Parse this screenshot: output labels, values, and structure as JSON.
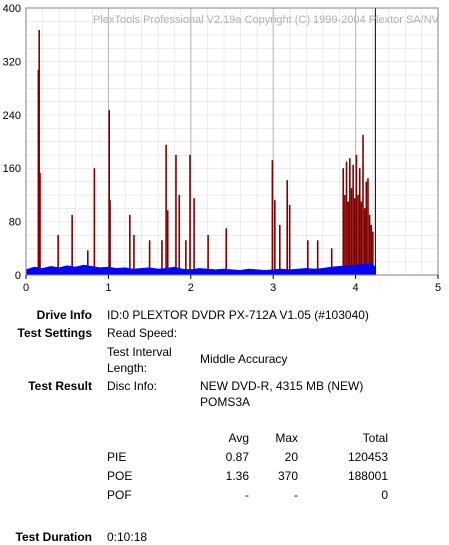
{
  "chart_data": {
    "type": "bar",
    "title": "PlexTools Professional V2.19a Copyright (C) 1999-2004 Plextor SA/NV",
    "xlim": [
      0,
      5
    ],
    "xticks": [
      0,
      1,
      2,
      3,
      4,
      5
    ],
    "ylim": [
      0,
      400
    ],
    "yticks": [
      0,
      80,
      160,
      240,
      320,
      400
    ],
    "grid": true,
    "end_x": 4.24,
    "end_color": "#000000",
    "series": [
      {
        "type": "bar",
        "color": "#800000",
        "x": [
          0.15,
          0.16,
          0.17,
          0.39,
          0.56,
          0.75,
          0.83,
          1.01,
          1.02,
          1.26,
          1.31,
          1.5,
          1.65,
          1.7,
          1.72,
          1.82,
          1.86,
          1.94,
          1.99,
          2.04,
          2.21,
          2.43,
          2.99,
          3.02,
          3.08,
          3.17,
          3.2,
          3.42,
          3.54,
          3.71,
          3.85,
          3.87,
          3.89,
          3.91,
          3.93,
          3.95,
          3.97,
          3.99,
          4.01,
          4.03,
          4.05,
          4.07,
          4.09,
          4.11,
          4.13,
          4.15,
          4.17,
          4.19,
          4.21
        ],
        "values": [
          307,
          367,
          153,
          60,
          90,
          37,
          160,
          247,
          112,
          90,
          60,
          52,
          52,
          195,
          97,
          180,
          120,
          52,
          180,
          115,
          60,
          70,
          172,
          112,
          75,
          142,
          105,
          52,
          52,
          40,
          160,
          120,
          170,
          110,
          175,
          130,
          165,
          115,
          180,
          120,
          160,
          110,
          210,
          100,
          140,
          145,
          90,
          75,
          65
        ]
      },
      {
        "type": "area",
        "color": "#0000ff",
        "x": [
          0,
          0.1,
          0.2,
          0.3,
          0.4,
          0.5,
          0.6,
          0.7,
          0.8,
          0.9,
          1.0,
          1.1,
          1.2,
          1.3,
          1.4,
          1.5,
          1.6,
          1.7,
          1.8,
          1.9,
          2.0,
          2.1,
          2.2,
          2.3,
          2.4,
          2.5,
          2.6,
          2.7,
          2.8,
          2.9,
          3.0,
          3.1,
          3.2,
          3.3,
          3.4,
          3.5,
          3.6,
          3.7,
          3.8,
          3.9,
          4.0,
          4.1,
          4.2,
          4.24
        ],
        "values": [
          8,
          12,
          10,
          13,
          11,
          14,
          12,
          15,
          13,
          11,
          12,
          10,
          11,
          9,
          10,
          11,
          9,
          10,
          12,
          9,
          8,
          10,
          9,
          8,
          9,
          8,
          7,
          9,
          8,
          7,
          8,
          9,
          8,
          9,
          10,
          9,
          10,
          12,
          13,
          14,
          15,
          16,
          17,
          12
        ]
      }
    ]
  },
  "info": {
    "drive_label": "Drive Info",
    "drive_value": "ID:0 PLEXTOR DVDR PX-712A V1.05 (#103040)",
    "settings_label": "Test Settings",
    "read_speed": "Read Speed:",
    "interval_label": "Test Interval Length:",
    "interval_value": "Middle Accuracy",
    "result_label": "Test Result",
    "disc_label": "Disc Info:",
    "disc_value": "NEW DVD-R, 4315 MB (NEW) POMS3A",
    "table": {
      "header": [
        "Avg",
        "Max",
        "Total"
      ],
      "rows": [
        [
          "PIE",
          "0.87",
          "20",
          "120453"
        ],
        [
          "POE",
          "1.36",
          "370",
          "188001"
        ],
        [
          "POF",
          "-",
          "-",
          "0"
        ]
      ]
    },
    "duration_label": "Test Duration",
    "duration_value": "0:10:18"
  }
}
